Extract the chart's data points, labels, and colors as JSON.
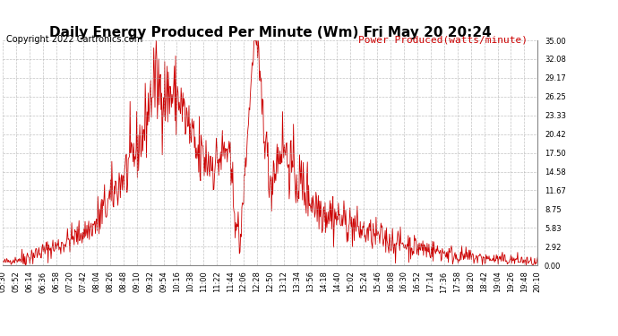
{
  "title": "Daily Energy Produced Per Minute (Wm) Fri May 20 20:24",
  "copyright": "Copyright 2022 Cartronics.com",
  "legend_label": "Power Produced(watts/minute)",
  "ylabel_right_values": [
    0.0,
    2.92,
    5.83,
    8.75,
    11.67,
    14.58,
    17.5,
    20.42,
    23.33,
    26.25,
    29.17,
    32.08,
    35.0
  ],
  "ymin": 0.0,
  "ymax": 35.0,
  "line_color": "#cc0000",
  "background_color": "#ffffff",
  "grid_color": "#aaaaaa",
  "title_fontsize": 11,
  "copyright_fontsize": 7,
  "legend_fontsize": 8,
  "tick_fontsize": 6,
  "x_tick_labels": [
    "05:30",
    "05:52",
    "06:14",
    "06:36",
    "06:58",
    "07:20",
    "07:42",
    "08:04",
    "08:26",
    "08:48",
    "09:10",
    "09:32",
    "09:54",
    "10:16",
    "10:38",
    "11:00",
    "11:22",
    "11:44",
    "12:06",
    "12:28",
    "12:50",
    "13:12",
    "13:34",
    "13:56",
    "14:18",
    "14:40",
    "15:02",
    "15:24",
    "15:46",
    "16:08",
    "16:30",
    "16:52",
    "17:14",
    "17:36",
    "17:58",
    "18:20",
    "18:42",
    "19:04",
    "19:26",
    "19:48",
    "20:10"
  ],
  "seed": 42
}
